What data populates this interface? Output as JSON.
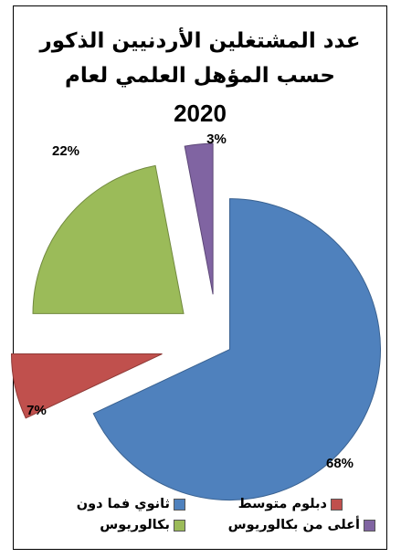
{
  "chart_data": {
    "type": "pie",
    "title_line1": "عدد المشتغلين الأردنيين الذكور",
    "title_line2": "حسب المؤهل العلمي  لعام",
    "title_line3": "2020",
    "slices": [
      {
        "name": "ثانوي فما دون",
        "value": 68,
        "label": "68%",
        "color": "#4F81BD"
      },
      {
        "name": "دبلوم متوسط",
        "value": 7,
        "label": "7%",
        "color": "#C0504D"
      },
      {
        "name": "بكالوريوس",
        "value": 22,
        "label": "22%",
        "color": "#9BBB59"
      },
      {
        "name": "أعلى من بكالوريوس",
        "value": 3,
        "label": "3%",
        "color": "#8064A2"
      }
    ]
  }
}
